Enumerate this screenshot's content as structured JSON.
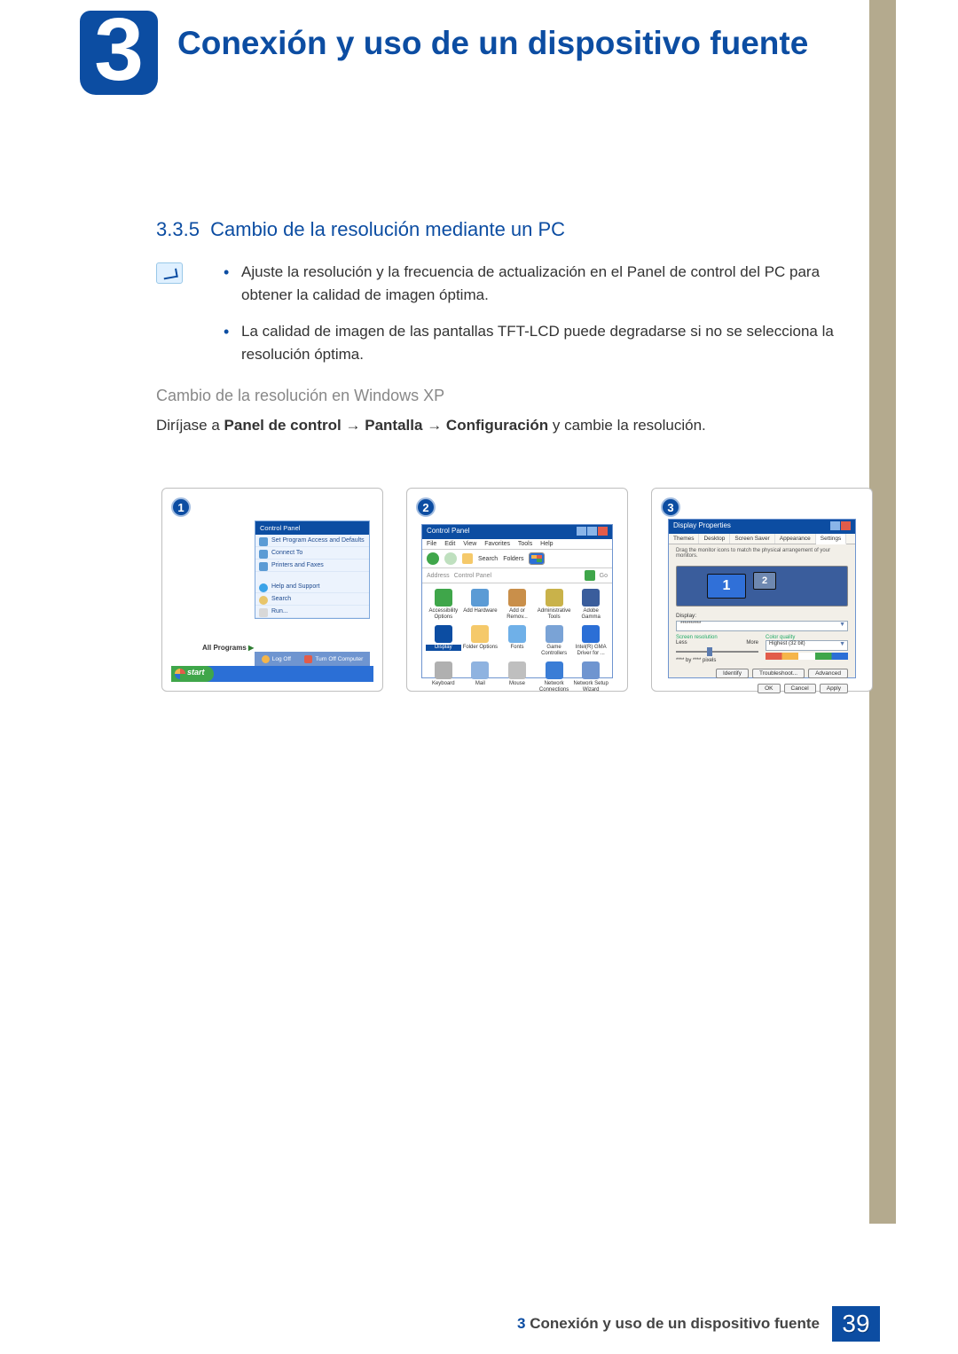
{
  "page": {
    "chapter_number": "3",
    "chapter_title": "Conexión y uso de un dispositivo fuente",
    "section_number": "3.3.5",
    "section_title": "Cambio de la resolución mediante un PC",
    "bullets": [
      "Ajuste la resolución y la frecuencia de actualización en el Panel de control del PC para obtener la calidad de imagen óptima.",
      "La calidad de imagen de las pantallas TFT-LCD puede degradarse si no se selecciona la resolución óptima."
    ],
    "subheading": "Cambio de la resolución en Windows XP",
    "path_prefix": "Diríjase a ",
    "path_bold1": "Panel de control",
    "path_bold2": "Pantalla",
    "path_bold3": "Configuración",
    "path_suffix": " y cambie la resolución.",
    "footer_chapter": "3",
    "footer_title": "Conexión y uso de un dispositivo fuente",
    "page_number": "39"
  },
  "colors": {
    "brand_blue": "#0c4da2",
    "sidebar_beige": "#b4aa8e",
    "xp_blue": "#2b6fd6",
    "xp_green": "#3fa64a",
    "xp_red": "#e25c4a",
    "xp_yellow": "#f5b54a"
  },
  "shot1": {
    "step": "1",
    "menu_header": "Control Panel",
    "items": [
      "Set Program Access and Defaults",
      "Connect To",
      "Printers and Faxes",
      "Help and Support",
      "Search",
      "Run..."
    ],
    "all_programs": "All Programs",
    "logoff": "Log Off",
    "turnoff": "Turn Off Computer",
    "start": "start"
  },
  "shot2": {
    "step": "2",
    "title": "Control Panel",
    "menus": [
      "File",
      "Edit",
      "View",
      "Favorites",
      "Tools",
      "Help"
    ],
    "search": "Search",
    "folders": "Folders",
    "address_label": "Address",
    "address_value": "Control Panel",
    "go": "Go",
    "icons": [
      {
        "label": "Accessibility Options",
        "color": "#3fa64a"
      },
      {
        "label": "Add Hardware",
        "color": "#5b9bd5"
      },
      {
        "label": "Add or Remov...",
        "color": "#c98f4a"
      },
      {
        "label": "Administrative Tools",
        "color": "#c9b24a"
      },
      {
        "label": "Adobe Gamma",
        "color": "#3a5d9c"
      },
      {
        "label": "Display",
        "color": "#0c4da2",
        "selected": true
      },
      {
        "label": "Folder Options",
        "color": "#f5c96a"
      },
      {
        "label": "Fonts",
        "color": "#6fb0e8"
      },
      {
        "label": "Game Controllers",
        "color": "#7aa3d6"
      },
      {
        "label": "Intel(R) GMA Driver for ...",
        "color": "#2b6fd6"
      },
      {
        "label": "Keyboard",
        "color": "#b0b0b0"
      },
      {
        "label": "Mail",
        "color": "#8fb3e0"
      },
      {
        "label": "Mouse",
        "color": "#bfbfbf"
      },
      {
        "label": "Network Connections",
        "color": "#3a7dd6"
      },
      {
        "label": "Network Setup Wizard",
        "color": "#6f95d0"
      }
    ]
  },
  "shot3": {
    "step": "3",
    "title": "Display Properties",
    "tabs": [
      "Themes",
      "Desktop",
      "Screen Saver",
      "Appearance",
      "Settings"
    ],
    "active_tab": "Settings",
    "hint": "Drag the monitor icons to match the physical arrangement of your monitors.",
    "mon1": "1",
    "mon2": "2",
    "display_label": "Display:",
    "display_value": "**********",
    "res_label": "Screen resolution",
    "res_less": "Less",
    "res_more": "More",
    "res_value": "**** by **** pixels",
    "quality_label": "Color quality",
    "quality_value": "Highest (32 bit)",
    "buttons_mid": [
      "Identify",
      "Troubleshoot...",
      "Advanced"
    ],
    "buttons_bottom": [
      "OK",
      "Cancel",
      "Apply"
    ]
  }
}
